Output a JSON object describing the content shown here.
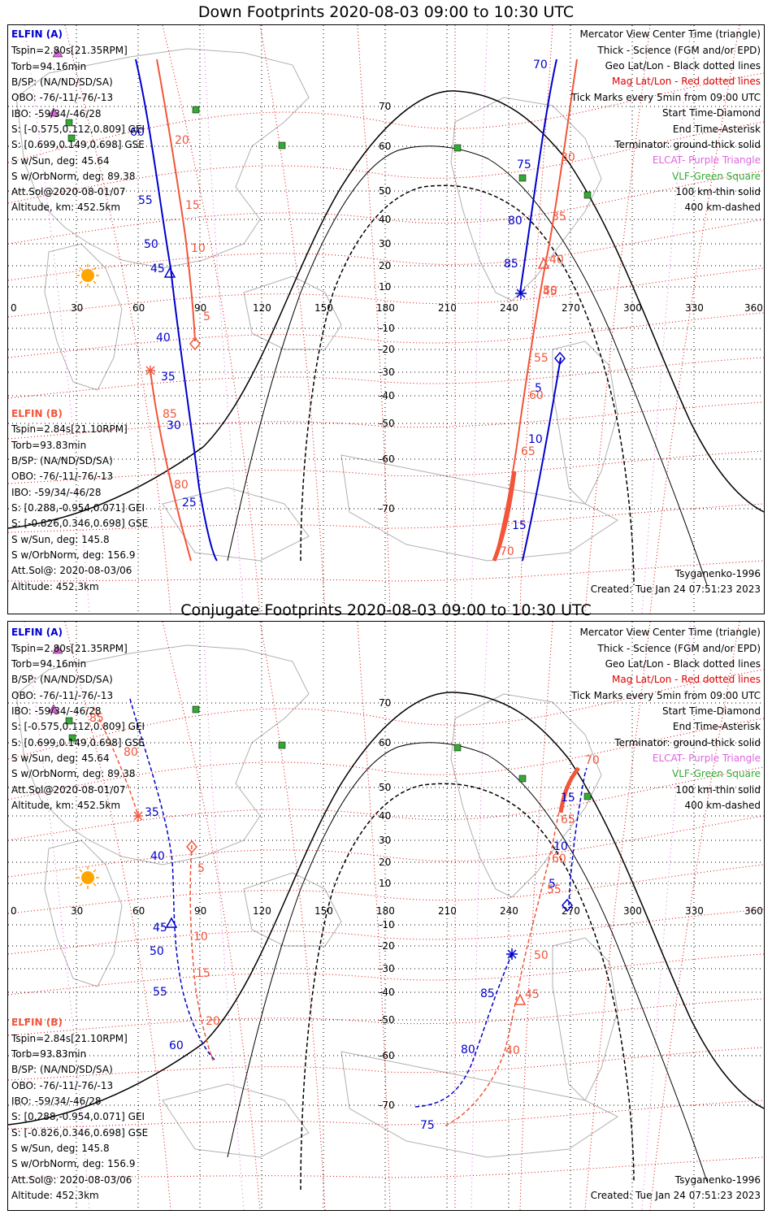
{
  "panels": [
    {
      "id": "down",
      "title": "Down Footprints 2020-08-03 09:00 to 10:30 UTC",
      "elfin_a": {
        "heading": "ELFIN (A)",
        "lines": [
          "Tspin=2.80s[21.35RPM]",
          "Torb=94.16min",
          "B/SP: (NA/ND/SD/SA)",
          "OBO: -76/-11/-76/-13",
          "IBO: -59/34/-46/28",
          "S: [-0.575,0.112,0.809] GEI",
          "S: [0.699,0.149,0.698] GSE",
          "S w/Sun, deg: 45.64",
          "S w/OrbNorm, deg: 89.38",
          "Att.Sol@2020-08-01/07",
          "Altitude, km: 452.5km"
        ]
      },
      "elfin_b": {
        "heading": "ELFIN (B)",
        "lines": [
          "Tspin=2.84s[21.10RPM]",
          "Torb=93.83min",
          "B/SP: (NA/ND/SD/SA)",
          "OBO: -76/-11/-76/-13",
          "IBO: -59/34/-46/28",
          "S: [0.288,-0.954,0.071] GEI",
          "S: [-0.826,0.346,0.698] GSE",
          "S w/Sun, deg: 145.8",
          "S w/OrbNorm, deg: 156.9",
          "Att.Sol@: 2020-08-03/06",
          "Altitude: 452.3km"
        ]
      },
      "legend": [
        "Mercator View Center Time (triangle)",
        "Thick - Science (FGM and/or EPD)",
        "Geo Lat/Lon - Black dotted lines",
        "Mag Lat/Lon - Red dotted lines",
        "Tick Marks every 5min from 09:00 UTC",
        "Start Time-Diamond",
        "End Time-Asterisk",
        "Terminator: ground-thick solid",
        "ELCAT- Purple Triangle",
        "VLF-Green Square",
        "100 km-thin solid",
        "400 km-dashed"
      ],
      "model": "Tsyganenko-1996",
      "created": "Created: Tue Jan 24 07:51:23 2023"
    },
    {
      "id": "conj",
      "title": "Conjugate Footprints 2020-08-03 09:00 to 10:30 UTC",
      "elfin_a": {
        "heading": "ELFIN (A)",
        "lines": [
          "Tspin=2.80s[21.35RPM]",
          "Torb=94.16min",
          "B/SP: (NA/ND/SD/SA)",
          "OBO: -76/-11/-76/-13",
          "IBO: -59/34/-46/28",
          "S: [-0.575,0.112,0.809] GEI",
          "S: [0.699,0.149,0.698] GSE",
          "S w/Sun, deg: 45.64",
          "S w/OrbNorm, deg: 89.38",
          "Att.Sol@2020-08-01/07",
          "Altitude, km: 452.5km"
        ]
      },
      "elfin_b": {
        "heading": "ELFIN (B)",
        "lines": [
          "Tspin=2.84s[21.10RPM]",
          "Torb=93.83min",
          "B/SP: (NA/ND/SD/SA)",
          "OBO: -76/-11/-76/-13",
          "IBO: -59/34/-46/28",
          "S: [0.288,-0.954,0.071] GEI",
          "S: [-0.826,0.346,0.698] GSE",
          "S w/Sun, deg: 145.8",
          "S w/OrbNorm, deg: 156.9",
          "Att.Sol@: 2020-08-03/06",
          "Altitude: 452.3km"
        ]
      },
      "legend": [
        "Mercator View Center Time (triangle)",
        "Thick - Science (FGM and/or EPD)",
        "Geo Lat/Lon - Black dotted lines",
        "Mag Lat/Lon - Red dotted lines",
        "Tick Marks every 5min from 09:00 UTC",
        "Start Time-Diamond",
        "End Time-Asterisk",
        "Terminator: ground-thick solid",
        "ELCAT- Purple Triangle",
        "VLF-Green Square",
        "100 km-thin solid",
        "400 km-dashed"
      ],
      "model": "Tsyganenko-1996",
      "created": "Created: Tue Jan 24 07:51:23 2023"
    }
  ],
  "axes": {
    "lon_ticks": [
      "0",
      "30",
      "60",
      "90",
      "120",
      "150",
      "180",
      "210",
      "240",
      "270",
      "300",
      "330",
      "360"
    ],
    "lat_ticks": [
      "70",
      "60",
      "50",
      "40",
      "30",
      "20",
      "10",
      "-10",
      "-20",
      "-30",
      "-40",
      "-50",
      "-60",
      "-70"
    ]
  },
  "colors": {
    "elfin_a": "#0000cc",
    "elfin_b": "#f2553a",
    "mag_grid": "#dd0000",
    "geo_grid": "#000000",
    "elcat": "#dd66dd",
    "vlf": "#33aa33",
    "coast": "#b0b0b0",
    "sun": "#ffa500"
  },
  "icons": [
    "sun-icon",
    "diamond-icon",
    "asterisk-icon",
    "triangle-icon",
    "square-icon"
  ],
  "tracks": {
    "down": {
      "a1_ticks": [
        "60",
        "55",
        "50",
        "45",
        "40",
        "35",
        "30",
        "25"
      ],
      "b1_ticks": [
        "20",
        "15",
        "10",
        "5"
      ],
      "b1b_ticks": [
        "85",
        "80"
      ],
      "a2_ticks": [
        "70",
        "75",
        "80",
        "85"
      ],
      "b2_ticks": [
        "30",
        "35",
        "40",
        "45",
        "50"
      ],
      "a3_ticks": [
        "5",
        "10",
        "15"
      ],
      "b3_ticks": [
        "55",
        "60",
        "65",
        "70"
      ]
    },
    "conj": {
      "a1_ticks": [
        "35",
        "40",
        "45",
        "50",
        "55",
        "60"
      ],
      "b1_ticks": [
        "5",
        "10",
        "15",
        "20"
      ],
      "b1b_ticks": [
        "80",
        "85"
      ],
      "a2_ticks": [
        "85",
        "80",
        "75"
      ],
      "b2_ticks": [
        "50",
        "45",
        "40"
      ],
      "a3_ticks": [
        "5",
        "10",
        "15"
      ],
      "b3_ticks": [
        "55",
        "60",
        "65",
        "70"
      ]
    }
  }
}
